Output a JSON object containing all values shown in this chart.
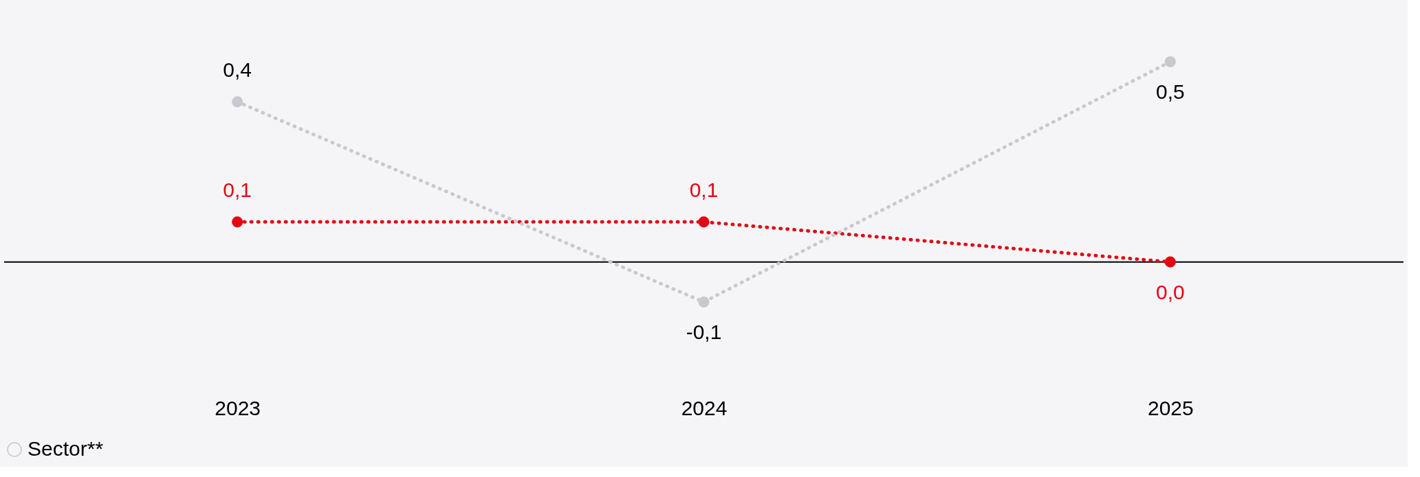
{
  "chart_data": {
    "type": "line",
    "categories": [
      "2023",
      "2024",
      "2025"
    ],
    "series": [
      {
        "color": "#e30613",
        "values": [
          0.1,
          0.1,
          0.0
        ],
        "value_labels": [
          "0,1",
          "0,1",
          "0,0"
        ]
      },
      {
        "name": "Sector**",
        "color": "#c8c8ce",
        "values": [
          0.4,
          -0.1,
          0.5
        ],
        "value_labels": [
          "0,4",
          "-0,1",
          "0,5"
        ]
      }
    ],
    "marker": "circle",
    "line_style": "dotted",
    "legend": "bottom",
    "ref_lines": [
      {
        "axis": "y",
        "value": 0,
        "color": "#000000",
        "line_style": "solid"
      }
    ]
  }
}
